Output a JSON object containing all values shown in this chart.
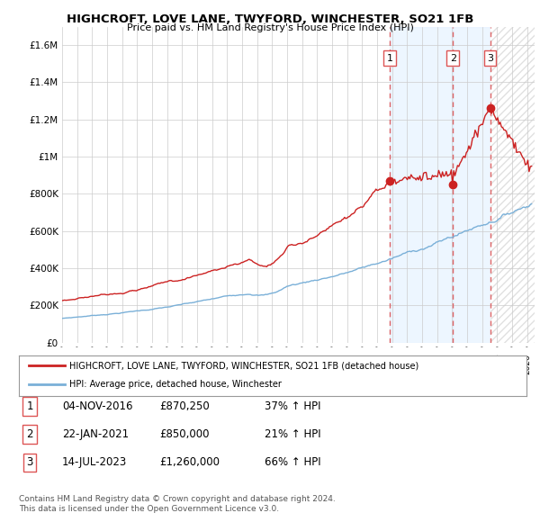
{
  "title": "HIGHCROFT, LOVE LANE, TWYFORD, WINCHESTER, SO21 1FB",
  "subtitle": "Price paid vs. HM Land Registry's House Price Index (HPI)",
  "xlim_start": 1995.0,
  "xlim_end": 2026.5,
  "ylim_min": 0,
  "ylim_max": 1700000,
  "background_color": "#ffffff",
  "grid_color": "#cccccc",
  "purchase_dates": [
    2016.84,
    2021.06,
    2023.54
  ],
  "purchase_prices": [
    870250,
    850000,
    1260000
  ],
  "purchase_labels": [
    "1",
    "2",
    "3"
  ],
  "legend_line1": "HIGHCROFT, LOVE LANE, TWYFORD, WINCHESTER, SO21 1FB (detached house)",
  "legend_line2": "HPI: Average price, detached house, Winchester",
  "table_data": [
    [
      "1",
      "04-NOV-2016",
      "£870,250",
      "37% ↑ HPI"
    ],
    [
      "2",
      "22-JAN-2021",
      "£850,000",
      "21% ↑ HPI"
    ],
    [
      "3",
      "14-JUL-2023",
      "£1,260,000",
      "66% ↑ HPI"
    ]
  ],
  "footnote1": "Contains HM Land Registry data © Crown copyright and database right 2024.",
  "footnote2": "This data is licensed under the Open Government Licence v3.0.",
  "hpi_color": "#7ab0d8",
  "price_color": "#cc2222",
  "vline_color": "#dd5555",
  "shade_color": "#ddeeff",
  "marker_color": "#cc2222",
  "hatch_color": "#cccccc"
}
